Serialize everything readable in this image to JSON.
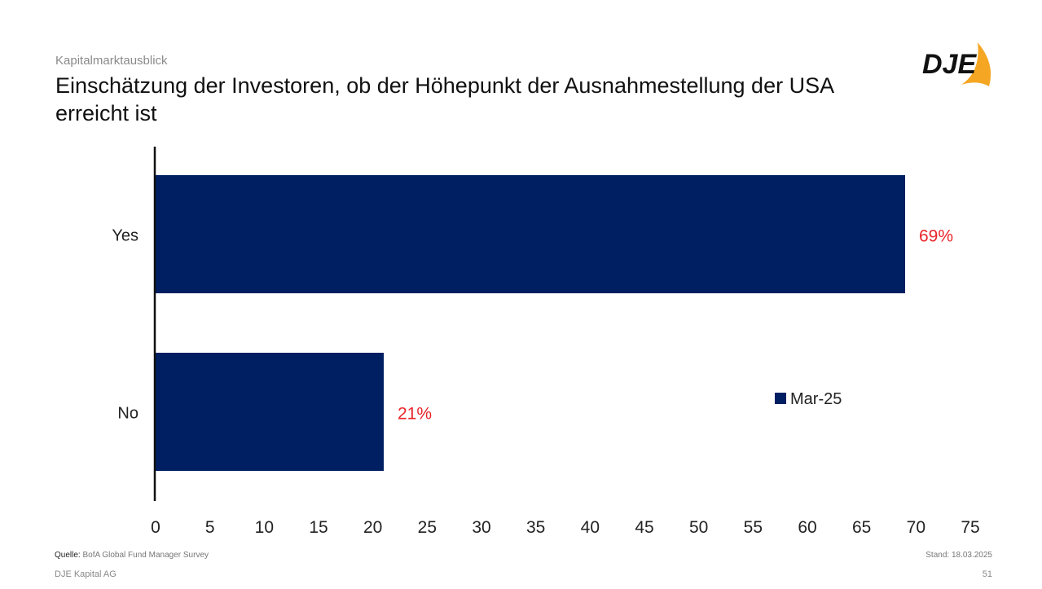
{
  "header": {
    "kicker": "Kapitalmarktausblick",
    "title": "Einschätzung der Investoren, ob der Höhepunkt der Ausnahmestellung der USA erreicht ist",
    "logo_text": "DJE"
  },
  "footer": {
    "source_label": "Quelle:",
    "source": "BofA Global Fund Manager Survey",
    "company": "DJE Kapital AG",
    "stand": "Stand: 18.03.2025",
    "page": "51"
  },
  "chart_data": {
    "type": "bar",
    "orientation": "horizontal",
    "categories": [
      "Yes",
      "No"
    ],
    "series": [
      {
        "name": "Mar-25",
        "values": [
          69,
          21
        ],
        "color": "#001f62"
      }
    ],
    "data_labels": [
      "69%",
      "21%"
    ],
    "data_label_color": "#e8262b",
    "xlim": [
      0,
      75
    ],
    "xticks": [
      0,
      5,
      10,
      15,
      20,
      25,
      30,
      35,
      40,
      45,
      50,
      55,
      60,
      65,
      70,
      75
    ],
    "grid": false,
    "legend": "right"
  }
}
